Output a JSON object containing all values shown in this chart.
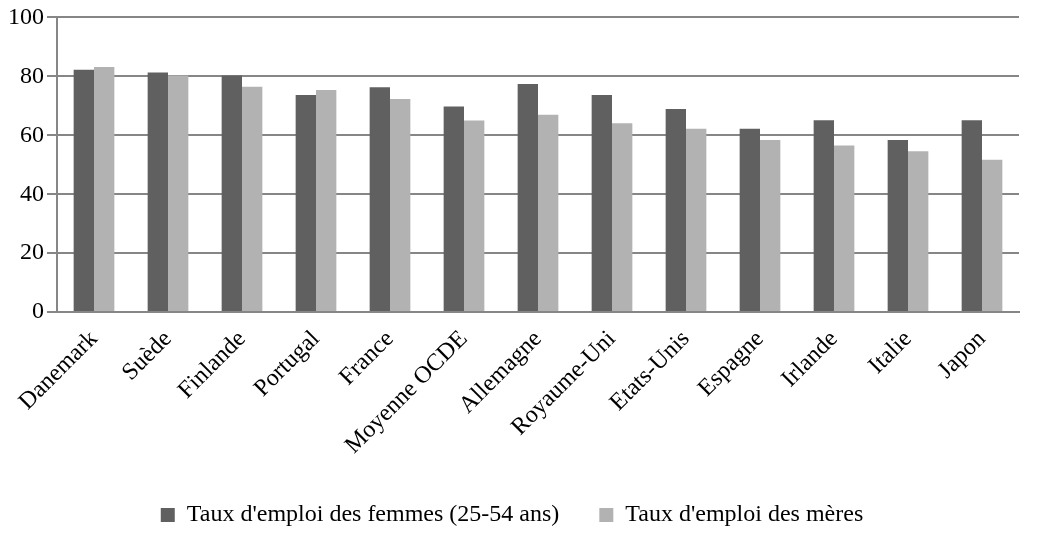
{
  "chart_data": {
    "type": "bar",
    "categories": [
      "Danemark",
      "Suède",
      "Finlande",
      "Portugal",
      "France",
      "Moyenne OCDE",
      "Allemagne",
      "Royaume-Uni",
      "Etats-Unis",
      "Espagne",
      "Irlande",
      "Italie",
      "Japon"
    ],
    "series": [
      {
        "name": "Taux d'emploi des femmes (25-54 ans)",
        "color": "#606060",
        "values": [
          82.2,
          81.3,
          80.3,
          73.7,
          76.3,
          69.8,
          77.4,
          73.7,
          68.9,
          62.2,
          65.1,
          58.4,
          65.1
        ]
      },
      {
        "name": "Taux d'emploi des mères",
        "color": "#b2b2b2",
        "values": [
          83.2,
          80.3,
          76.5,
          75.4,
          72.3,
          65.0,
          67.0,
          64.1,
          62.2,
          58.4,
          56.5,
          54.6,
          51.7
        ]
      }
    ],
    "ylim": [
      0,
      100
    ],
    "yticks": [
      0,
      20,
      40,
      60,
      80,
      100
    ],
    "grid": "y",
    "legend": "bottom"
  }
}
